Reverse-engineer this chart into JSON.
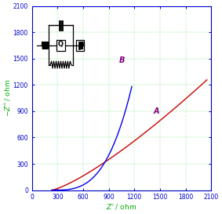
{
  "title": "",
  "xlabel": "Z\\u2019 / ohm",
  "ylabel": "-Z\\u2019\\u2019 / ohm",
  "xlim": [
    0,
    2100
  ],
  "ylim": [
    0,
    2100
  ],
  "xticks": [
    0,
    300,
    600,
    900,
    1200,
    1500,
    1800,
    2100
  ],
  "yticks": [
    0,
    300,
    600,
    900,
    1200,
    1500,
    1800,
    2100
  ],
  "xlabel_color": "#00aa00",
  "ylabel_color": "#00aa00",
  "tick_color": "#0000cc",
  "axis_color": "#0000cc",
  "grid_color": "#00cc00",
  "background_color": "#ffffff",
  "curve_A_color": "#cc0000",
  "curve_B_color": "#0000ee",
  "label_A_color": "#800080",
  "label_B_color": "#800080"
}
